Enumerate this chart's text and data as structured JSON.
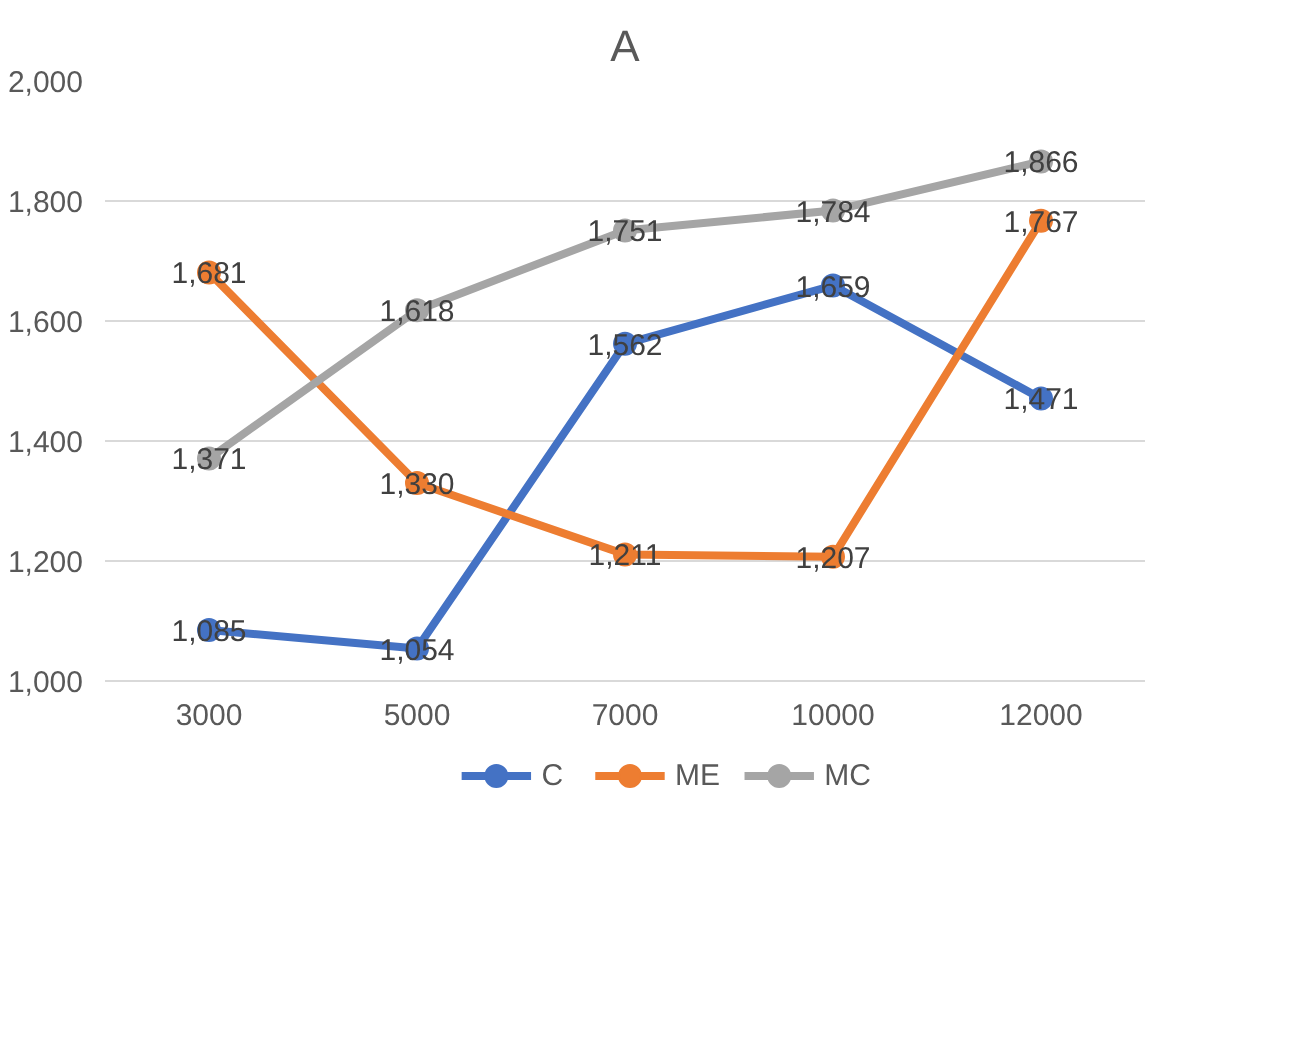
{
  "chart_data": {
    "type": "line",
    "title": "A",
    "categories": [
      "3000",
      "5000",
      "7000",
      "10000",
      "12000"
    ],
    "series": [
      {
        "name": "C",
        "color": "#4472c4",
        "values": [
          1085,
          1054,
          1562,
          1659,
          1471
        ],
        "value_labels": [
          "1,085",
          "1,054",
          "1,562",
          "1,659",
          "1,471"
        ]
      },
      {
        "name": "ME",
        "color": "#ed7d31",
        "values": [
          1681,
          1330,
          1211,
          1207,
          1767
        ],
        "value_labels": [
          "1,681",
          "1,330",
          "1,211",
          "1,207",
          "1,767"
        ]
      },
      {
        "name": "MC",
        "color": "#a5a5a5",
        "values": [
          1371,
          1618,
          1751,
          1784,
          1866
        ],
        "value_labels": [
          "1,371",
          "1,618",
          "1,751",
          "1,784",
          "1,866"
        ]
      }
    ],
    "ylim": [
      1000,
      2000
    ],
    "yticks": [
      {
        "value": 1000,
        "label": "1,000"
      },
      {
        "value": 1200,
        "label": "1,200"
      },
      {
        "value": 1400,
        "label": "1,400"
      },
      {
        "value": 1600,
        "label": "1,600"
      },
      {
        "value": 1800,
        "label": "1,800"
      },
      {
        "value": 2000,
        "label": "2,000"
      }
    ],
    "grid": "y",
    "legend": "bottom",
    "marker": "circle",
    "line_style": "solid"
  }
}
